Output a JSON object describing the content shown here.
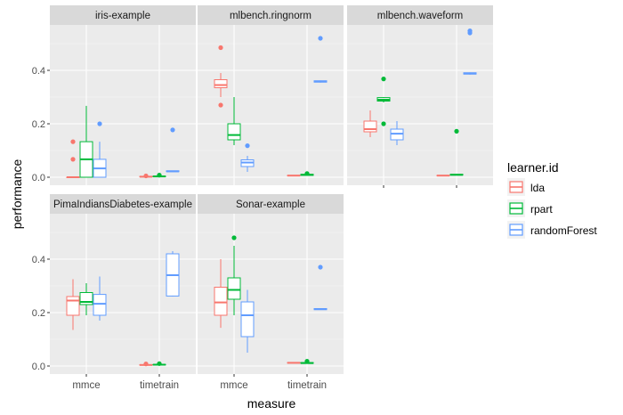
{
  "chart_data": {
    "type": "boxplot",
    "xlabel": "measure",
    "ylabel": "performance",
    "ylim": [
      -0.03,
      0.57
    ],
    "yticks": [
      0.0,
      0.2,
      0.4
    ],
    "ytick_labels": [
      "0.0",
      "0.2",
      "0.4"
    ],
    "categories": [
      "mmce",
      "timetrain"
    ],
    "legend": {
      "title": "learner.id",
      "position": "right",
      "entries": [
        {
          "name": "lda",
          "color": "#F8766D"
        },
        {
          "name": "rpart",
          "color": "#00BA38"
        },
        {
          "name": "randomForest",
          "color": "#619CFF"
        }
      ]
    },
    "facets": [
      {
        "title": "iris-example",
        "boxes": [
          {
            "measure": "mmce",
            "learner": "lda",
            "q1": 0.0,
            "median": 0.0,
            "q3": 0.0,
            "whisker_low": 0.0,
            "whisker_high": 0.0,
            "outliers": [
              0.067,
              0.133
            ]
          },
          {
            "measure": "mmce",
            "learner": "rpart",
            "q1": 0.0,
            "median": 0.067,
            "q3": 0.133,
            "whisker_low": 0.0,
            "whisker_high": 0.267,
            "outliers": []
          },
          {
            "measure": "mmce",
            "learner": "randomForest",
            "q1": 0.0,
            "median": 0.033,
            "q3": 0.067,
            "whisker_low": 0.0,
            "whisker_high": 0.133,
            "outliers": [
              0.2
            ]
          },
          {
            "measure": "timetrain",
            "learner": "lda",
            "q1": 0.002,
            "median": 0.002,
            "q3": 0.003,
            "whisker_low": 0.001,
            "whisker_high": 0.004,
            "outliers": [
              0.005
            ]
          },
          {
            "measure": "timetrain",
            "learner": "rpart",
            "q1": 0.002,
            "median": 0.003,
            "q3": 0.004,
            "whisker_low": 0.001,
            "whisker_high": 0.006,
            "outliers": [
              0.008
            ]
          },
          {
            "measure": "timetrain",
            "learner": "randomForest",
            "q1": 0.021,
            "median": 0.022,
            "q3": 0.024,
            "whisker_low": 0.02,
            "whisker_high": 0.025,
            "outliers": [
              0.177
            ]
          }
        ]
      },
      {
        "title": "mlbench.ringnorm",
        "boxes": [
          {
            "measure": "mmce",
            "learner": "lda",
            "q1": 0.335,
            "median": 0.345,
            "q3": 0.365,
            "whisker_low": 0.3,
            "whisker_high": 0.39,
            "outliers": [
              0.27,
              0.485
            ]
          },
          {
            "measure": "mmce",
            "learner": "rpart",
            "q1": 0.14,
            "median": 0.158,
            "q3": 0.2,
            "whisker_low": 0.12,
            "whisker_high": 0.3,
            "outliers": []
          },
          {
            "measure": "mmce",
            "learner": "randomForest",
            "q1": 0.04,
            "median": 0.055,
            "q3": 0.065,
            "whisker_low": 0.02,
            "whisker_high": 0.08,
            "outliers": [
              0.118
            ]
          },
          {
            "measure": "timetrain",
            "learner": "lda",
            "q1": 0.005,
            "median": 0.006,
            "q3": 0.007,
            "whisker_low": 0.004,
            "whisker_high": 0.008,
            "outliers": []
          },
          {
            "measure": "timetrain",
            "learner": "rpart",
            "q1": 0.007,
            "median": 0.009,
            "q3": 0.011,
            "whisker_low": 0.006,
            "whisker_high": 0.012,
            "outliers": [
              0.014
            ]
          },
          {
            "measure": "timetrain",
            "learner": "randomForest",
            "q1": 0.356,
            "median": 0.358,
            "q3": 0.361,
            "whisker_low": 0.354,
            "whisker_high": 0.362,
            "outliers": [
              0.52
            ]
          }
        ]
      },
      {
        "title": "mlbench.waveform",
        "boxes": [
          {
            "measure": "mmce",
            "learner": "lda",
            "q1": 0.17,
            "median": 0.18,
            "q3": 0.21,
            "whisker_low": 0.15,
            "whisker_high": 0.25,
            "outliers": []
          },
          {
            "measure": "mmce",
            "learner": "rpart",
            "q1": 0.285,
            "median": 0.29,
            "q3": 0.298,
            "whisker_low": 0.28,
            "whisker_high": 0.3,
            "outliers": [
              0.2,
              0.368
            ]
          },
          {
            "measure": "mmce",
            "learner": "randomForest",
            "q1": 0.14,
            "median": 0.163,
            "q3": 0.18,
            "whisker_low": 0.12,
            "whisker_high": 0.21,
            "outliers": []
          },
          {
            "measure": "timetrain",
            "learner": "lda",
            "q1": 0.005,
            "median": 0.006,
            "q3": 0.007,
            "whisker_low": 0.004,
            "whisker_high": 0.008,
            "outliers": []
          },
          {
            "measure": "timetrain",
            "learner": "rpart",
            "q1": 0.008,
            "median": 0.009,
            "q3": 0.011,
            "whisker_low": 0.007,
            "whisker_high": 0.012,
            "outliers": [
              0.172
            ]
          },
          {
            "measure": "timetrain",
            "learner": "randomForest",
            "q1": 0.386,
            "median": 0.388,
            "q3": 0.391,
            "whisker_low": 0.384,
            "whisker_high": 0.392,
            "outliers": [
              0.54,
              0.548
            ]
          }
        ]
      },
      {
        "title": "PimaIndiansDiabetes-example",
        "boxes": [
          {
            "measure": "mmce",
            "learner": "lda",
            "q1": 0.19,
            "median": 0.245,
            "q3": 0.26,
            "whisker_low": 0.135,
            "whisker_high": 0.325,
            "outliers": []
          },
          {
            "measure": "mmce",
            "learner": "rpart",
            "q1": 0.23,
            "median": 0.24,
            "q3": 0.275,
            "whisker_low": 0.19,
            "whisker_high": 0.31,
            "outliers": []
          },
          {
            "measure": "mmce",
            "learner": "randomForest",
            "q1": 0.19,
            "median": 0.233,
            "q3": 0.268,
            "whisker_low": 0.17,
            "whisker_high": 0.335,
            "outliers": []
          },
          {
            "measure": "timetrain",
            "learner": "lda",
            "q1": 0.003,
            "median": 0.004,
            "q3": 0.005,
            "whisker_low": 0.002,
            "whisker_high": 0.006,
            "outliers": [
              0.008
            ]
          },
          {
            "measure": "timetrain",
            "learner": "rpart",
            "q1": 0.004,
            "median": 0.005,
            "q3": 0.006,
            "whisker_low": 0.003,
            "whisker_high": 0.007,
            "outliers": [
              0.009
            ]
          },
          {
            "measure": "timetrain",
            "learner": "randomForest",
            "q1": 0.262,
            "median": 0.34,
            "q3": 0.42,
            "whisker_low": 0.26,
            "whisker_high": 0.43,
            "outliers": []
          }
        ]
      },
      {
        "title": "Sonar-example",
        "boxes": [
          {
            "measure": "mmce",
            "learner": "lda",
            "q1": 0.19,
            "median": 0.238,
            "q3": 0.295,
            "whisker_low": 0.143,
            "whisker_high": 0.4,
            "outliers": []
          },
          {
            "measure": "mmce",
            "learner": "rpart",
            "q1": 0.25,
            "median": 0.285,
            "q3": 0.33,
            "whisker_low": 0.19,
            "whisker_high": 0.45,
            "outliers": [
              0.48
            ]
          },
          {
            "measure": "mmce",
            "learner": "randomForest",
            "q1": 0.11,
            "median": 0.19,
            "q3": 0.24,
            "whisker_low": 0.05,
            "whisker_high": 0.285,
            "outliers": []
          },
          {
            "measure": "timetrain",
            "learner": "lda",
            "q1": 0.011,
            "median": 0.012,
            "q3": 0.013,
            "whisker_low": 0.01,
            "whisker_high": 0.014,
            "outliers": []
          },
          {
            "measure": "timetrain",
            "learner": "rpart",
            "q1": 0.01,
            "median": 0.011,
            "q3": 0.013,
            "whisker_low": 0.009,
            "whisker_high": 0.014,
            "outliers": [
              0.018
            ]
          },
          {
            "measure": "timetrain",
            "learner": "randomForest",
            "q1": 0.211,
            "median": 0.213,
            "q3": 0.215,
            "whisker_low": 0.21,
            "whisker_high": 0.216,
            "outliers": [
              0.37
            ]
          }
        ]
      }
    ]
  }
}
